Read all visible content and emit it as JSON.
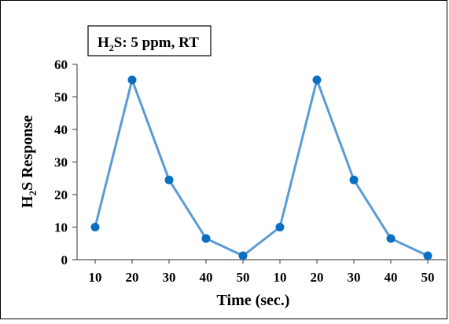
{
  "chart_data": {
    "type": "line",
    "annotation": {
      "prefix": "H",
      "subscript": "2",
      "suffix": "S: 5 ppm, RT"
    },
    "xlabel": "Time (sec.)",
    "ylabel": {
      "prefix": "H",
      "subscript": "2",
      "suffix": "S Response"
    },
    "categories": [
      "10",
      "20",
      "30",
      "40",
      "50",
      "10",
      "20",
      "30",
      "40",
      "50"
    ],
    "series": [
      {
        "values": [
          10,
          55.2,
          24.5,
          6.5,
          1.2,
          10,
          55.2,
          24.5,
          6.5,
          1.2
        ],
        "color": "#5b9bd5",
        "marker_color": "#0a6fc2"
      }
    ],
    "ylim": [
      0,
      60
    ],
    "yticks": [
      0,
      10,
      20,
      30,
      40,
      50,
      60
    ],
    "grid": false,
    "legend": "none"
  }
}
